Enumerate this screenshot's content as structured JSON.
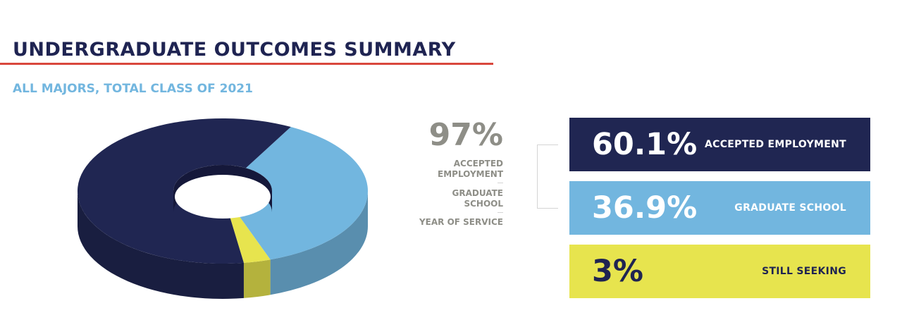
{
  "header": {
    "title": "UNDERGRADUATE OUTCOMES SUMMARY",
    "subtitle": "ALL MAJORS, TOTAL CLASS OF 2021"
  },
  "summary": {
    "percent": "97%",
    "labels": {
      "accepted": "ACCEPTED EMPLOYMENT",
      "graduate": "GRADUATE SCHOOL",
      "service": "YEAR OF SERVICE"
    }
  },
  "bars": [
    {
      "value_text": "60.1%",
      "label": "ACCEPTED EMPLOYMENT"
    },
    {
      "value_text": "36.9%",
      "label": "GRADUATE SCHOOL"
    },
    {
      "value_text": "3%",
      "label": "STILL SEEKING"
    }
  ],
  "colors": {
    "navy": "#202652",
    "light_blue": "#72b6df",
    "yellow": "#e7e44e",
    "red_rule": "#d9473d",
    "gray": "#8e8e87"
  },
  "chart_data": {
    "type": "pie",
    "title": "UNDERGRADUATE OUTCOMES SUMMARY",
    "subtitle": "ALL MAJORS, TOTAL CLASS OF 2021",
    "categories": [
      "ACCEPTED EMPLOYMENT",
      "GRADUATE SCHOOL",
      "STILL SEEKING"
    ],
    "values": [
      60.1,
      36.9,
      3
    ],
    "colors": [
      "#202652",
      "#72b6df",
      "#e7e44e"
    ],
    "style": "3d-donut"
  }
}
